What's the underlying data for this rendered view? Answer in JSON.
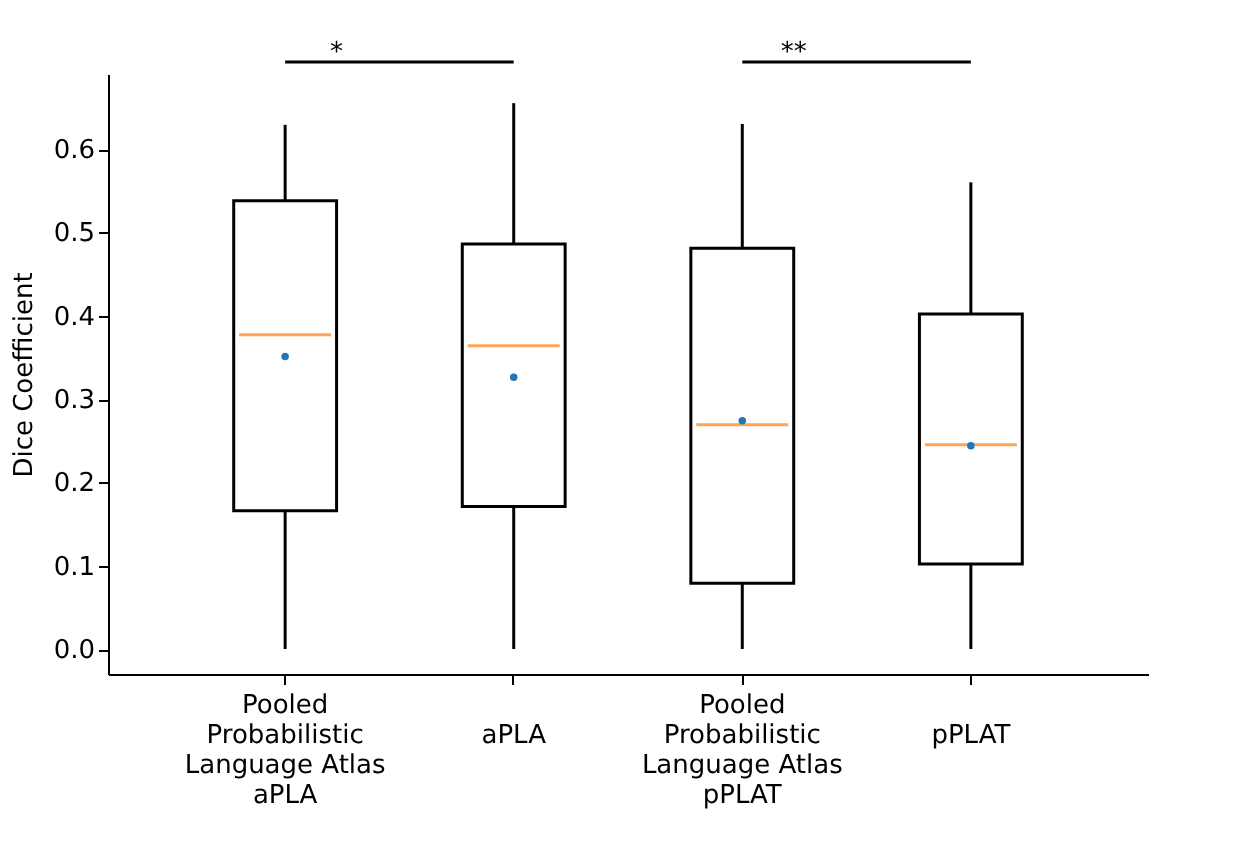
{
  "chart_data": {
    "type": "box",
    "ylabel": "Dice Coefficient",
    "categories": [
      "Pooled\nProbabilistic\nLanguage Atlas\naPLA",
      "\naPLA",
      "Pooled\nProbabilistic\nLanguage Atlas\npPLAT",
      "\npPLAT"
    ],
    "boxes": [
      {
        "low": 0,
        "q1": 0.166,
        "median": 0.377,
        "q3": 0.538,
        "high": 0.629,
        "mean": 0.351
      },
      {
        "low": 0,
        "q1": 0.171,
        "median": 0.364,
        "q3": 0.486,
        "high": 0.655,
        "mean": 0.326
      },
      {
        "low": 0,
        "q1": 0.079,
        "median": 0.269,
        "q3": 0.481,
        "high": 0.63,
        "mean": 0.274
      },
      {
        "low": 0,
        "q1": 0.102,
        "median": 0.245,
        "q3": 0.402,
        "high": 0.56,
        "mean": 0.244
      }
    ],
    "ylim": [
      -0.03,
      0.69
    ],
    "yticks": [
      {
        "value": 0,
        "label": "0.0"
      },
      0.1,
      0.2,
      0.3,
      0.4,
      0.5,
      0.6
    ],
    "grid": false,
    "annotations": [
      "*",
      "**"
    ]
  }
}
